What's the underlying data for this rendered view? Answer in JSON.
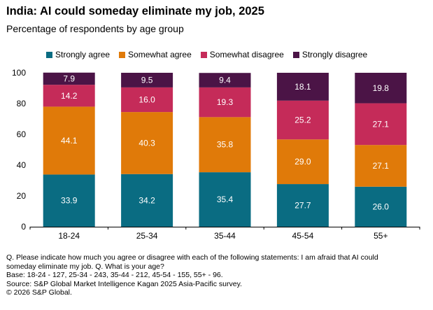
{
  "header": {
    "title": "India: AI could someday eliminate my job, 2025",
    "subtitle": "Percentage of respondents by age group"
  },
  "legend": [
    {
      "label": "Strongly agree",
      "color": "#0a6c82"
    },
    {
      "label": "Somewhat agree",
      "color": "#e07a09"
    },
    {
      "label": "Somewhat disagree",
      "color": "#c52b59"
    },
    {
      "label": "Strongly disagree",
      "color": "#4b1446"
    }
  ],
  "chart_data": {
    "type": "bar",
    "stacked": true,
    "categories": [
      "18-24",
      "25-34",
      "35-44",
      "45-54",
      "55+"
    ],
    "series": [
      {
        "name": "Strongly agree",
        "color": "#0a6c82",
        "values": [
          33.9,
          34.2,
          35.4,
          27.7,
          26.0
        ]
      },
      {
        "name": "Somewhat agree",
        "color": "#e07a09",
        "values": [
          44.1,
          40.3,
          35.8,
          29.0,
          27.1
        ]
      },
      {
        "name": "Somewhat disagree",
        "color": "#c52b59",
        "values": [
          14.2,
          16.0,
          19.3,
          25.2,
          27.1
        ]
      },
      {
        "name": "Strongly disagree",
        "color": "#4b1446",
        "values": [
          7.9,
          9.5,
          9.4,
          18.1,
          19.8
        ]
      }
    ],
    "data_labels": [
      [
        "33.9",
        "34.2",
        "35.4",
        "27.7",
        "26.0"
      ],
      [
        "44.1",
        "40.3",
        "35.8",
        "29.0",
        "27.1"
      ],
      [
        "14.2",
        "16.0",
        "19.3",
        "25.2",
        "27.1"
      ],
      [
        "7.9",
        "9.5",
        "9.4",
        "18.1",
        "19.8"
      ]
    ],
    "ylim": [
      0,
      100
    ],
    "yticks": [
      "0",
      "20",
      "40",
      "60",
      "80",
      "100"
    ],
    "ytick_values": [
      0,
      20,
      40,
      60,
      80,
      100
    ],
    "grid": false,
    "legend_position": "top",
    "xlabel": "",
    "ylabel": ""
  },
  "footnotes": {
    "question_line1": "Q. Please indicate how much you agree or disagree with each of the following statements: I am afraid that AI could",
    "question_line2": "someday eliminate my job. Q. What is your age?",
    "base": "Base: 18-24 - 127, 25-34 - 243, 35-44 - 212, 45-54 - 155, 55+ - 96.",
    "source": "Source: S&P Global Market Intelligence Kagan 2025 Asia-Pacific survey.",
    "copyright": "© 2026 S&P Global."
  }
}
